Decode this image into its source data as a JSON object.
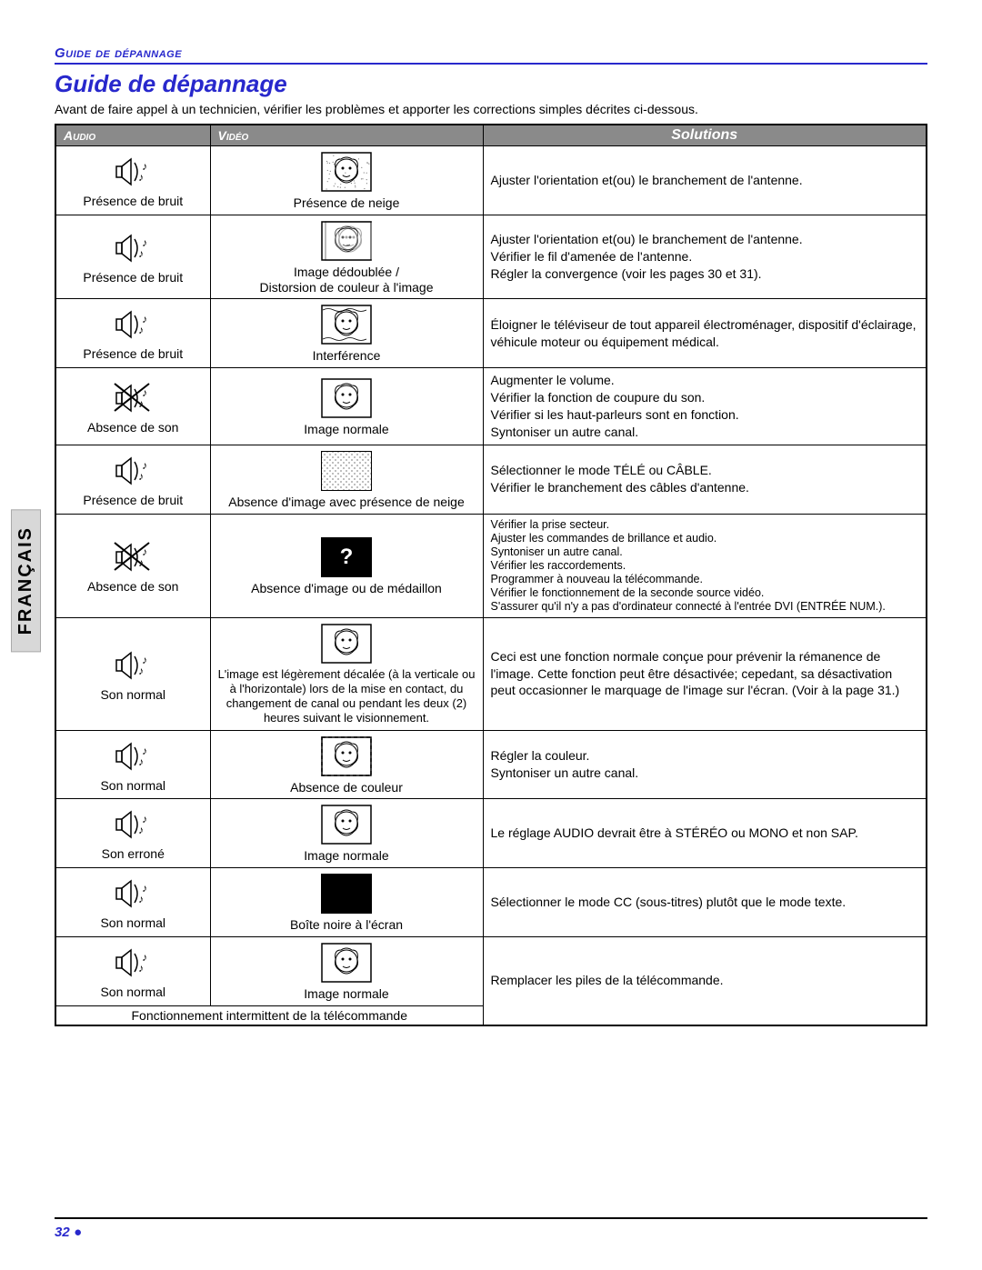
{
  "header": {
    "section_label": "Guide de dépannage",
    "title": "Guide de dépannage",
    "intro": "Avant de faire appel à un technicien, vérifier les problèmes et apporter les corrections simples décrites ci-dessous."
  },
  "table": {
    "columns": {
      "audio": "Audio",
      "video": "Vidéo",
      "solutions": "Solutions"
    },
    "rows": [
      {
        "audio_icon": "sound",
        "audio_label": "Présence de bruit",
        "video_icon": "face-snow",
        "video_label": "Présence de neige",
        "solution": "Ajuster l'orientation et(ou) le branchement de l'antenne."
      },
      {
        "audio_icon": "sound",
        "audio_label": "Présence de bruit",
        "video_icon": "face-ghost",
        "video_label": "Image dédoublée /\nDistorsion de couleur à l'image",
        "solution": "Ajuster l'orientation et(ou) le  branchement de l'antenne.\nVérifier le fil d'amenée de l'antenne.\nRégler la convergence (voir les pages 30 et 31)."
      },
      {
        "audio_icon": "sound",
        "audio_label": "Présence de bruit",
        "video_icon": "face-wavy",
        "video_label": "Interférence",
        "solution": "Éloigner le téléviseur de tout appareil électroménager, dispositif d'éclairage, véhicule moteur ou équipement médical."
      },
      {
        "audio_icon": "mute",
        "audio_label": "Absence de son",
        "video_icon": "face",
        "video_label": "Image normale",
        "solution": "Augmenter le volume.\nVérifier la fonction de coupure du son.\nVérifier si les haut-parleurs sont en fonction.\nSyntoniser un autre canal."
      },
      {
        "audio_icon": "sound",
        "audio_label": "Présence de bruit",
        "video_icon": "noise",
        "video_label": "Absence d'image avec présence de neige",
        "solution": "Sélectionner le mode TÉLÉ ou CÂBLE.\nVérifier le branchement des câbles d'antenne."
      },
      {
        "audio_icon": "mute",
        "audio_label": "Absence de son",
        "video_icon": "question",
        "video_label": "Absence d'image ou de médaillon",
        "solution_sm": "Vérifier la prise secteur.\nAjuster les commandes de brillance et audio.\nSyntoniser un autre canal.\nVérifier les raccordements.\nProgrammer à nouveau la télécommande.\nVérifier le fonctionnement de la seconde source vidéo.\nS'assurer qu'il n'y a pas d'ordinateur connecté à l'entrée DVI (ENTRÉE NUM.)."
      },
      {
        "audio_icon": "sound",
        "audio_label": "Son normal",
        "video_icon": "face",
        "video_label_sm": "L'image est légèrement décalée (à la verticale ou à l'horizontale) lors de la mise en contact, du changement de canal ou pendant les deux (2) heures suivant le visionnement.",
        "solution": "Ceci est une fonction normale conçue pour prévenir la rémanence de l'image. Cette fonction peut être désactivée; cepedant, sa désactivation peut occasionner le marquage de l'image sur l'écran. (Voir à la page 31.)"
      },
      {
        "audio_icon": "sound",
        "audio_label": "Son normal",
        "video_icon": "face-dash",
        "video_label": "Absence de couleur",
        "solution": "Régler la couleur.\nSyntoniser un autre canal."
      },
      {
        "audio_icon": "sound",
        "audio_label": "Son erroné",
        "video_icon": "face",
        "video_label": "Image normale",
        "solution": "Le réglage AUDIO devrait être à STÉRÉO ou MONO et non SAP."
      },
      {
        "audio_icon": "sound",
        "audio_label": "Son normal",
        "video_icon": "black",
        "video_label": "Boîte noire à l'écran",
        "solution": "Sélectionner le mode CC (sous-titres) plutôt que le mode texte."
      },
      {
        "audio_icon": "sound",
        "audio_label": "Son normal",
        "video_icon": "face",
        "video_label": "Image normale",
        "extra_footer": "Fonctionnement intermittent de la télécommande",
        "solution": "Remplacer les piles de la télécommande."
      }
    ]
  },
  "side_tab": "FRANÇAIS",
  "footer": {
    "page": "32",
    "bullet": "●"
  }
}
